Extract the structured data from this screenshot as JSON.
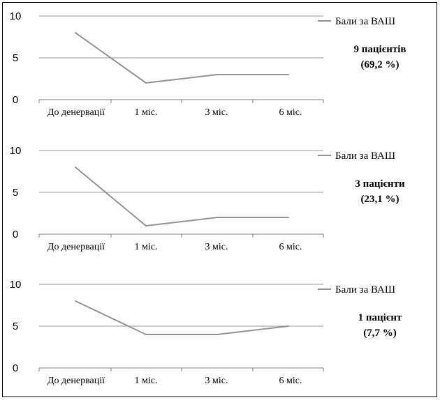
{
  "colors": {
    "line": "#939393",
    "grid": "#9a9a9a",
    "axis": "#808080",
    "text": "#000000"
  },
  "chart_data": [
    {
      "type": "line",
      "categories": [
        "До денервації",
        "1 міс.",
        "3 міс.",
        "6 міс."
      ],
      "series": [
        {
          "name": "Бали за ВАШ",
          "values": [
            8,
            2,
            3,
            3
          ]
        }
      ],
      "ylim": [
        0,
        10
      ],
      "yticks": [
        "0",
        "5",
        "10"
      ],
      "grid": true,
      "legend_position": "top-right",
      "annotation": [
        "9 пацієнтів",
        "(69,2 %)"
      ]
    },
    {
      "type": "line",
      "categories": [
        "До денервації",
        "1 міс.",
        "3 міс.",
        "6 міс."
      ],
      "series": [
        {
          "name": "Бали за ВАШ",
          "values": [
            8,
            1,
            2,
            2
          ]
        }
      ],
      "ylim": [
        0,
        10
      ],
      "yticks": [
        "0",
        "5",
        "10"
      ],
      "grid": true,
      "legend_position": "top-right",
      "annotation": [
        "3 пацієнти",
        "(23,1 %)"
      ]
    },
    {
      "type": "line",
      "categories": [
        "До денервації",
        "1 міс.",
        "3 міс.",
        "6 міс."
      ],
      "series": [
        {
          "name": "Бали за ВАШ",
          "values": [
            8,
            4,
            4,
            5
          ]
        }
      ],
      "ylim": [
        0,
        10
      ],
      "yticks": [
        "0",
        "5",
        "10"
      ],
      "grid": true,
      "legend_position": "top-right",
      "annotation": [
        "1 пацієнт",
        "(7,7 %)"
      ]
    }
  ]
}
